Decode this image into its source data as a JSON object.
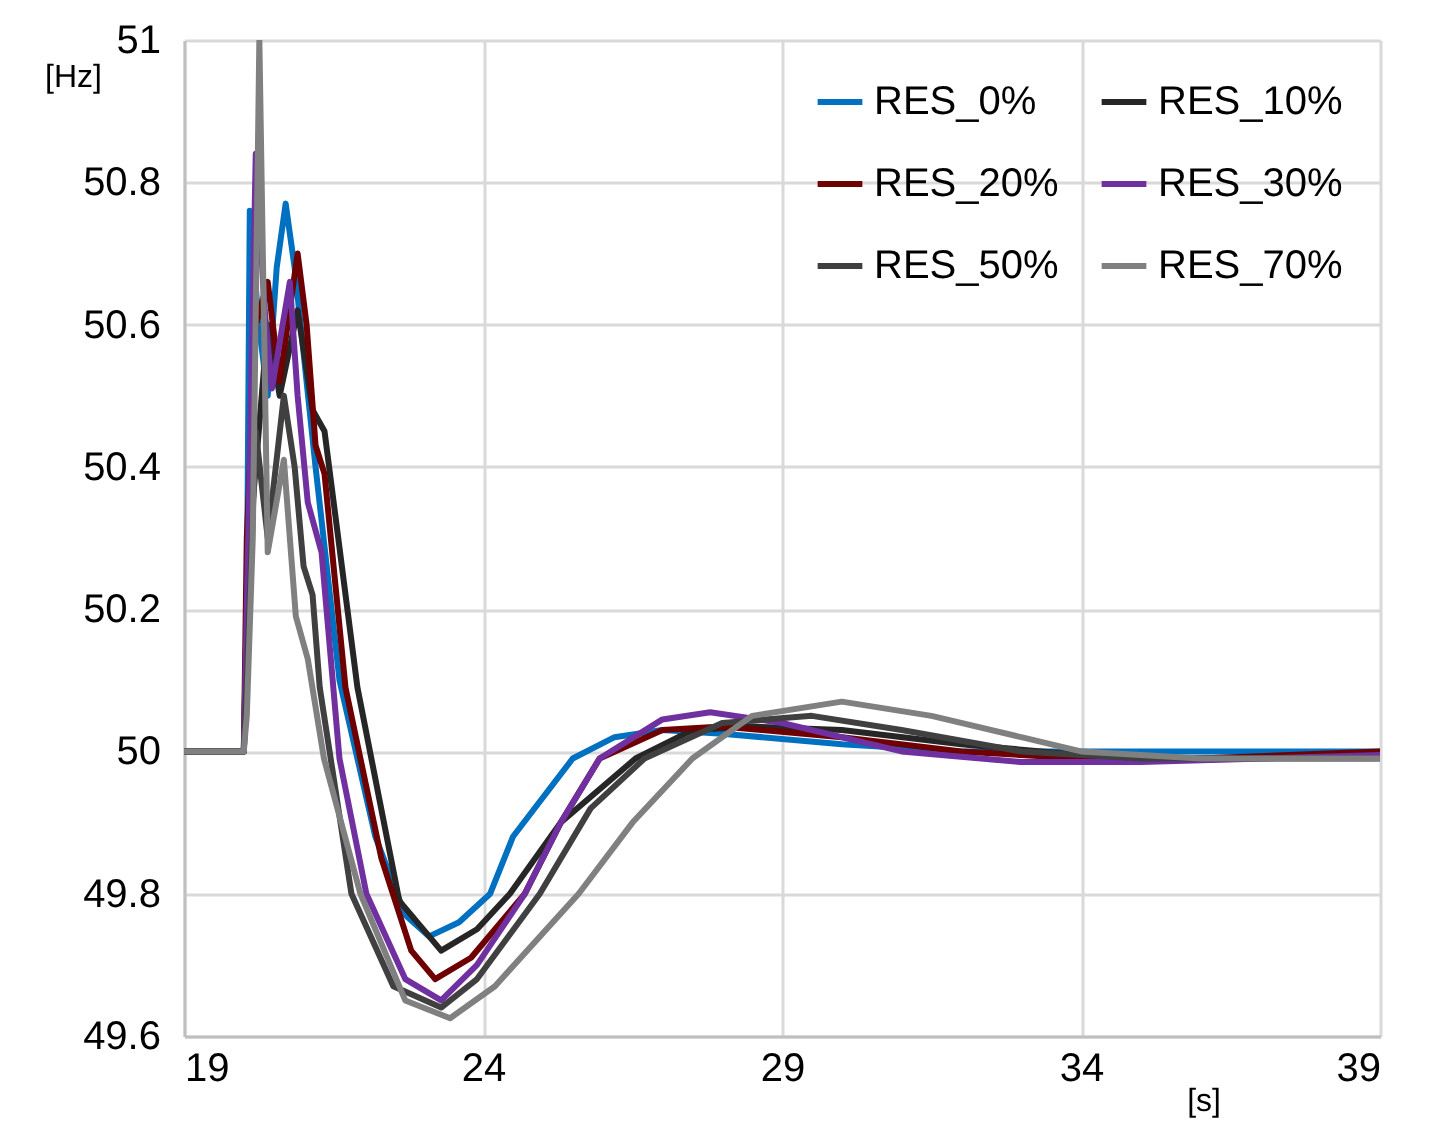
{
  "chart_data": {
    "type": "line",
    "xlabel": "[s]",
    "ylabel": "[Hz]",
    "xlim": [
      19,
      39
    ],
    "xticks": [
      19,
      24,
      29,
      34,
      39
    ],
    "ylim": [
      49.6,
      51
    ],
    "yticks": [
      49.6,
      49.8,
      50,
      50.2,
      50.4,
      50.6,
      50.8,
      51
    ],
    "grid": true,
    "legend": "top right",
    "series": [
      {
        "name": "RES_0%",
        "color": "#0070c0",
        "x": [
          19,
          20.0,
          20.05,
          20.1,
          20.25,
          20.4,
          20.55,
          20.7,
          20.85,
          21.2,
          21.6,
          22.2,
          22.7,
          23.1,
          23.6,
          24.12,
          24.5,
          25.5,
          26.2,
          27,
          28,
          30,
          32,
          34,
          39
        ],
        "values": [
          50,
          50,
          50.2,
          50.76,
          50.6,
          50.5,
          50.68,
          50.77,
          50.68,
          50.4,
          50.1,
          49.88,
          49.77,
          49.74,
          49.76,
          49.8,
          49.88,
          49.99,
          50.02,
          50.03,
          50.025,
          50.01,
          50.0,
          50.0,
          50.0
        ]
      },
      {
        "name": "RES_10%",
        "color": "#262626",
        "x": [
          19,
          20.0,
          20.05,
          20.1,
          20.4,
          20.6,
          20.9,
          21.15,
          21.35,
          21.9,
          22.6,
          23.3,
          23.9,
          24.45,
          25.3,
          26.55,
          27.5,
          28.5,
          30,
          32,
          34,
          36,
          39
        ],
        "values": [
          50,
          50,
          50.1,
          50.3,
          50.6,
          50.5,
          50.62,
          50.48,
          50.45,
          50.09,
          49.79,
          49.72,
          49.75,
          49.8,
          49.9,
          49.99,
          50.03,
          50.035,
          50.03,
          50.01,
          49.995,
          49.99,
          49.995
        ]
      },
      {
        "name": "RES_20%",
        "color": "#6e0000",
        "x": [
          19,
          20.0,
          20.05,
          20.2,
          20.4,
          20.6,
          20.9,
          21.05,
          21.2,
          21.35,
          21.7,
          22.3,
          22.8,
          23.2,
          23.8,
          24.7,
          25.3,
          25.95,
          27,
          28,
          30,
          32,
          34,
          36,
          39
        ],
        "values": [
          50,
          50,
          50.3,
          50.6,
          50.66,
          50.52,
          50.7,
          50.6,
          50.43,
          50.39,
          50.09,
          49.85,
          49.72,
          49.68,
          49.71,
          49.8,
          49.9,
          49.99,
          50.03,
          50.035,
          50.02,
          50.0,
          49.99,
          49.99,
          50.0
        ]
      },
      {
        "name": "RES_30%",
        "color": "#7030a0",
        "x": [
          19,
          20.0,
          20.05,
          20.2,
          20.35,
          20.47,
          20.77,
          20.9,
          21.07,
          21.3,
          21.6,
          22.05,
          22.7,
          23.3,
          23.9,
          24.7,
          25.3,
          25.95,
          27,
          27.8,
          29,
          31,
          33,
          35,
          39
        ],
        "values": [
          50,
          50,
          50.2,
          50.84,
          50.62,
          50.51,
          50.66,
          50.5,
          50.35,
          50.28,
          49.99,
          49.8,
          49.68,
          49.65,
          49.7,
          49.8,
          49.9,
          49.99,
          50.045,
          50.055,
          50.04,
          50.0,
          49.985,
          49.985,
          49.995
        ]
      },
      {
        "name": "RES_50%",
        "color": "#404040",
        "x": [
          19,
          20.0,
          20.05,
          20.2,
          20.4,
          20.67,
          20.85,
          21.0,
          21.15,
          21.27,
          21.8,
          22.5,
          23.3,
          23.9,
          24.95,
          25.8,
          26.7,
          28,
          29.5,
          31,
          33,
          35,
          39
        ],
        "values": [
          50,
          50,
          50.1,
          50.45,
          50.3,
          50.5,
          50.4,
          50.26,
          50.22,
          50.09,
          49.8,
          49.67,
          49.64,
          49.68,
          49.8,
          49.92,
          49.99,
          50.04,
          50.05,
          50.03,
          50.0,
          49.99,
          49.99
        ]
      },
      {
        "name": "RES_70%",
        "color": "#808080",
        "x": [
          19,
          20.0,
          20.05,
          20.15,
          20.26,
          20.4,
          20.67,
          20.87,
          21.07,
          21.34,
          21.95,
          22.7,
          23.45,
          24.2,
          25.6,
          26.5,
          27.5,
          28.5,
          30,
          31.5,
          33,
          34,
          36,
          39
        ],
        "values": [
          50,
          50,
          50.05,
          50.3,
          51,
          50.28,
          50.41,
          50.19,
          50.13,
          49.99,
          49.8,
          49.65,
          49.625,
          49.67,
          49.8,
          49.9,
          49.99,
          50.05,
          50.07,
          50.05,
          50.02,
          50.0,
          49.99,
          49.99
        ]
      }
    ]
  }
}
